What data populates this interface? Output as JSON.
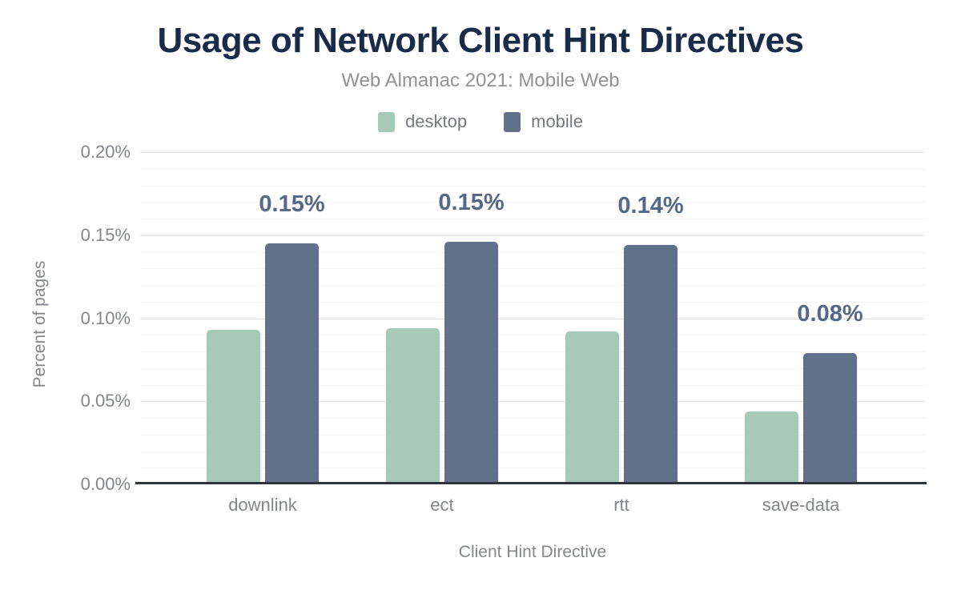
{
  "chart_data": {
    "type": "bar",
    "title": "Usage of Network Client Hint Directives",
    "subtitle": "Web Almanac 2021: Mobile Web",
    "categories": [
      "downlink",
      "ect",
      "rtt",
      "save-data"
    ],
    "series": [
      {
        "name": "desktop",
        "color": "#a6c9ba",
        "values": [
          0.093,
          0.094,
          0.092,
          0.044
        ]
      },
      {
        "name": "mobile",
        "color": "#61718c",
        "values": [
          0.145,
          0.146,
          0.144,
          0.079
        ],
        "labels": [
          "0.15%",
          "0.15%",
          "0.14%",
          "0.08%"
        ]
      }
    ],
    "xlabel": "Client Hint Directive",
    "ylabel": "Percent of pages",
    "ylim": [
      0,
      0.2
    ],
    "ytick_step": 0.05,
    "minor_step": 0.01,
    "yticks": [
      "0.00%",
      "0.05%",
      "0.10%",
      "0.15%",
      "0.20%"
    ],
    "legend_position": "top",
    "grid": true
  },
  "colors": {
    "title": "#1a2b49",
    "subtitle": "#909296",
    "axis_text": "#83868c",
    "legend_text": "#75787e",
    "data_label": "#56688a",
    "major_grid": "#dfe2e6",
    "minor_grid": "#f2f3f5",
    "axis_line": "#2e343b",
    "background": "#ffffff"
  }
}
